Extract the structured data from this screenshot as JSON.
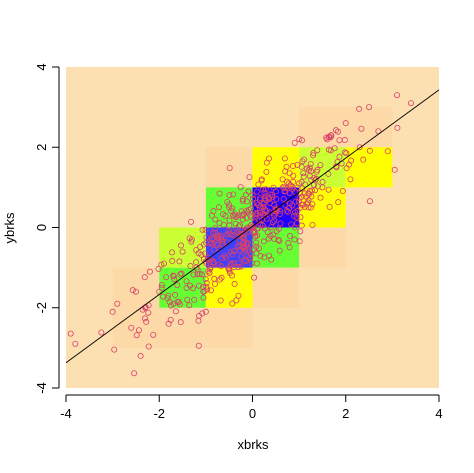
{
  "chart_data": {
    "type": "heatmap",
    "overlay": "scatter",
    "xlabel": "xbrks",
    "ylabel": "ybrks",
    "xlim": [
      -4,
      4
    ],
    "ylim": [
      -4,
      4
    ],
    "x_ticks": [
      -4,
      -2,
      0,
      2,
      4
    ],
    "y_ticks": [
      -4,
      -2,
      0,
      2,
      4
    ],
    "x_tick_labels": [
      "-4",
      "-2",
      "0",
      "2",
      "4"
    ],
    "y_tick_labels": [
      "-4",
      "-2",
      "0",
      "2",
      "4"
    ],
    "bin_breaks": [
      -4,
      -3,
      -2,
      -1,
      0,
      1,
      2,
      3,
      4
    ],
    "background_color": "#fde0b2",
    "color_scale": [
      "#fde0b2",
      "#fcd9a6",
      "#ffff00",
      "#ccff33",
      "#66ff33",
      "#00ff00",
      "#4040ff",
      "#2200ff"
    ],
    "cells": [
      {
        "x": [
          -3,
          -2
        ],
        "y": [
          -3,
          -2
        ],
        "level": 1
      },
      {
        "x": [
          -3,
          -2
        ],
        "y": [
          -2,
          -1
        ],
        "level": 1
      },
      {
        "x": [
          -2,
          -1
        ],
        "y": [
          -3,
          -2
        ],
        "level": 1
      },
      {
        "x": [
          -2,
          -1
        ],
        "y": [
          -1,
          0
        ],
        "level": 1
      },
      {
        "x": [
          -1,
          0
        ],
        "y": [
          -3,
          -2
        ],
        "level": 1
      },
      {
        "x": [
          0,
          1
        ],
        "y": [
          -2,
          -1
        ],
        "level": 1
      },
      {
        "x": [
          1,
          2
        ],
        "y": [
          -1,
          0
        ],
        "level": 1
      },
      {
        "x": [
          2,
          3
        ],
        "y": [
          2,
          3
        ],
        "level": 1
      },
      {
        "x": [
          -1,
          0
        ],
        "y": [
          1,
          2
        ],
        "level": 1
      },
      {
        "x": [
          1,
          2
        ],
        "y": [
          2,
          3
        ],
        "level": 1
      },
      {
        "x": [
          -2,
          -1
        ],
        "y": [
          -2,
          -1
        ],
        "level": 4
      },
      {
        "x": [
          -1,
          0
        ],
        "y": [
          -2,
          -1
        ],
        "level": 2
      },
      {
        "x": [
          -1,
          0
        ],
        "y": [
          0,
          1
        ],
        "level": 4
      },
      {
        "x": [
          -1,
          0
        ],
        "y": [
          -1,
          0
        ],
        "level": 6
      },
      {
        "x": [
          0,
          1
        ],
        "y": [
          -1,
          0
        ],
        "level": 4
      },
      {
        "x": [
          0,
          1
        ],
        "y": [
          0,
          1
        ],
        "level": 7
      },
      {
        "x": [
          1,
          2
        ],
        "y": [
          0,
          1
        ],
        "level": 2
      },
      {
        "x": [
          1,
          2
        ],
        "y": [
          1,
          2
        ],
        "level": 3
      },
      {
        "x": [
          0,
          1
        ],
        "y": [
          1,
          2
        ],
        "level": 2
      },
      {
        "x": [
          2,
          3
        ],
        "y": [
          1,
          2
        ],
        "level": 2
      },
      {
        "x": [
          -2,
          -1
        ],
        "y": [
          -1,
          0
        ],
        "level": 3
      }
    ],
    "points_color": "#d9406a",
    "points_summary": "about 500 points from a bivariate normal distribution, strongly positively correlated, spanning roughly x -4 to 3.5 and y -3.3 to 3.5",
    "points_sample": [
      [
        -3.8,
        -2.9
      ],
      [
        -3.0,
        -2.1
      ],
      [
        -2.9,
        -1.9
      ],
      [
        -2.6,
        -2.5
      ],
      [
        -2.5,
        -1.6
      ],
      [
        -2.4,
        -3.2
      ],
      [
        -2.3,
        -2.0
      ],
      [
        -2.2,
        -1.1
      ],
      [
        -2.0,
        -1.6
      ],
      [
        -1.9,
        -0.9
      ],
      [
        -1.8,
        -2.4
      ],
      [
        -1.7,
        -1.2
      ],
      [
        -1.5,
        -0.6
      ],
      [
        -1.4,
        -1.8
      ],
      [
        -1.3,
        -0.3
      ],
      [
        -1.2,
        -1.0
      ],
      [
        -1.0,
        -2.1
      ],
      [
        -0.9,
        -0.4
      ],
      [
        -0.8,
        0.2
      ],
      [
        -0.7,
        -1.3
      ],
      [
        -0.6,
        -0.7
      ],
      [
        -0.5,
        0.5
      ],
      [
        -0.4,
        -0.1
      ],
      [
        -0.3,
        -1.7
      ],
      [
        -0.2,
        0.3
      ],
      [
        -0.1,
        -0.5
      ],
      [
        0.0,
        0.8
      ],
      [
        0.1,
        -0.2
      ],
      [
        0.2,
        1.2
      ],
      [
        0.3,
        0.4
      ],
      [
        0.4,
        -0.8
      ],
      [
        0.5,
        0.9
      ],
      [
        0.6,
        0.1
      ],
      [
        0.7,
        1.4
      ],
      [
        0.8,
        0.6
      ],
      [
        0.9,
        -0.3
      ],
      [
        1.0,
        1.1
      ],
      [
        1.2,
        0.5
      ],
      [
        1.3,
        1.8
      ],
      [
        1.5,
        1.0
      ],
      [
        1.6,
        2.2
      ],
      [
        1.8,
        1.5
      ],
      [
        2.0,
        2.6
      ],
      [
        2.1,
        1.2
      ],
      [
        2.3,
        2.0
      ],
      [
        2.5,
        3.0
      ],
      [
        2.7,
        2.4
      ],
      [
        2.9,
        1.9
      ],
      [
        3.1,
        3.3
      ],
      [
        3.4,
        3.1
      ]
    ],
    "regression_line": {
      "intercept": 0.03,
      "slope": 0.85
    }
  }
}
